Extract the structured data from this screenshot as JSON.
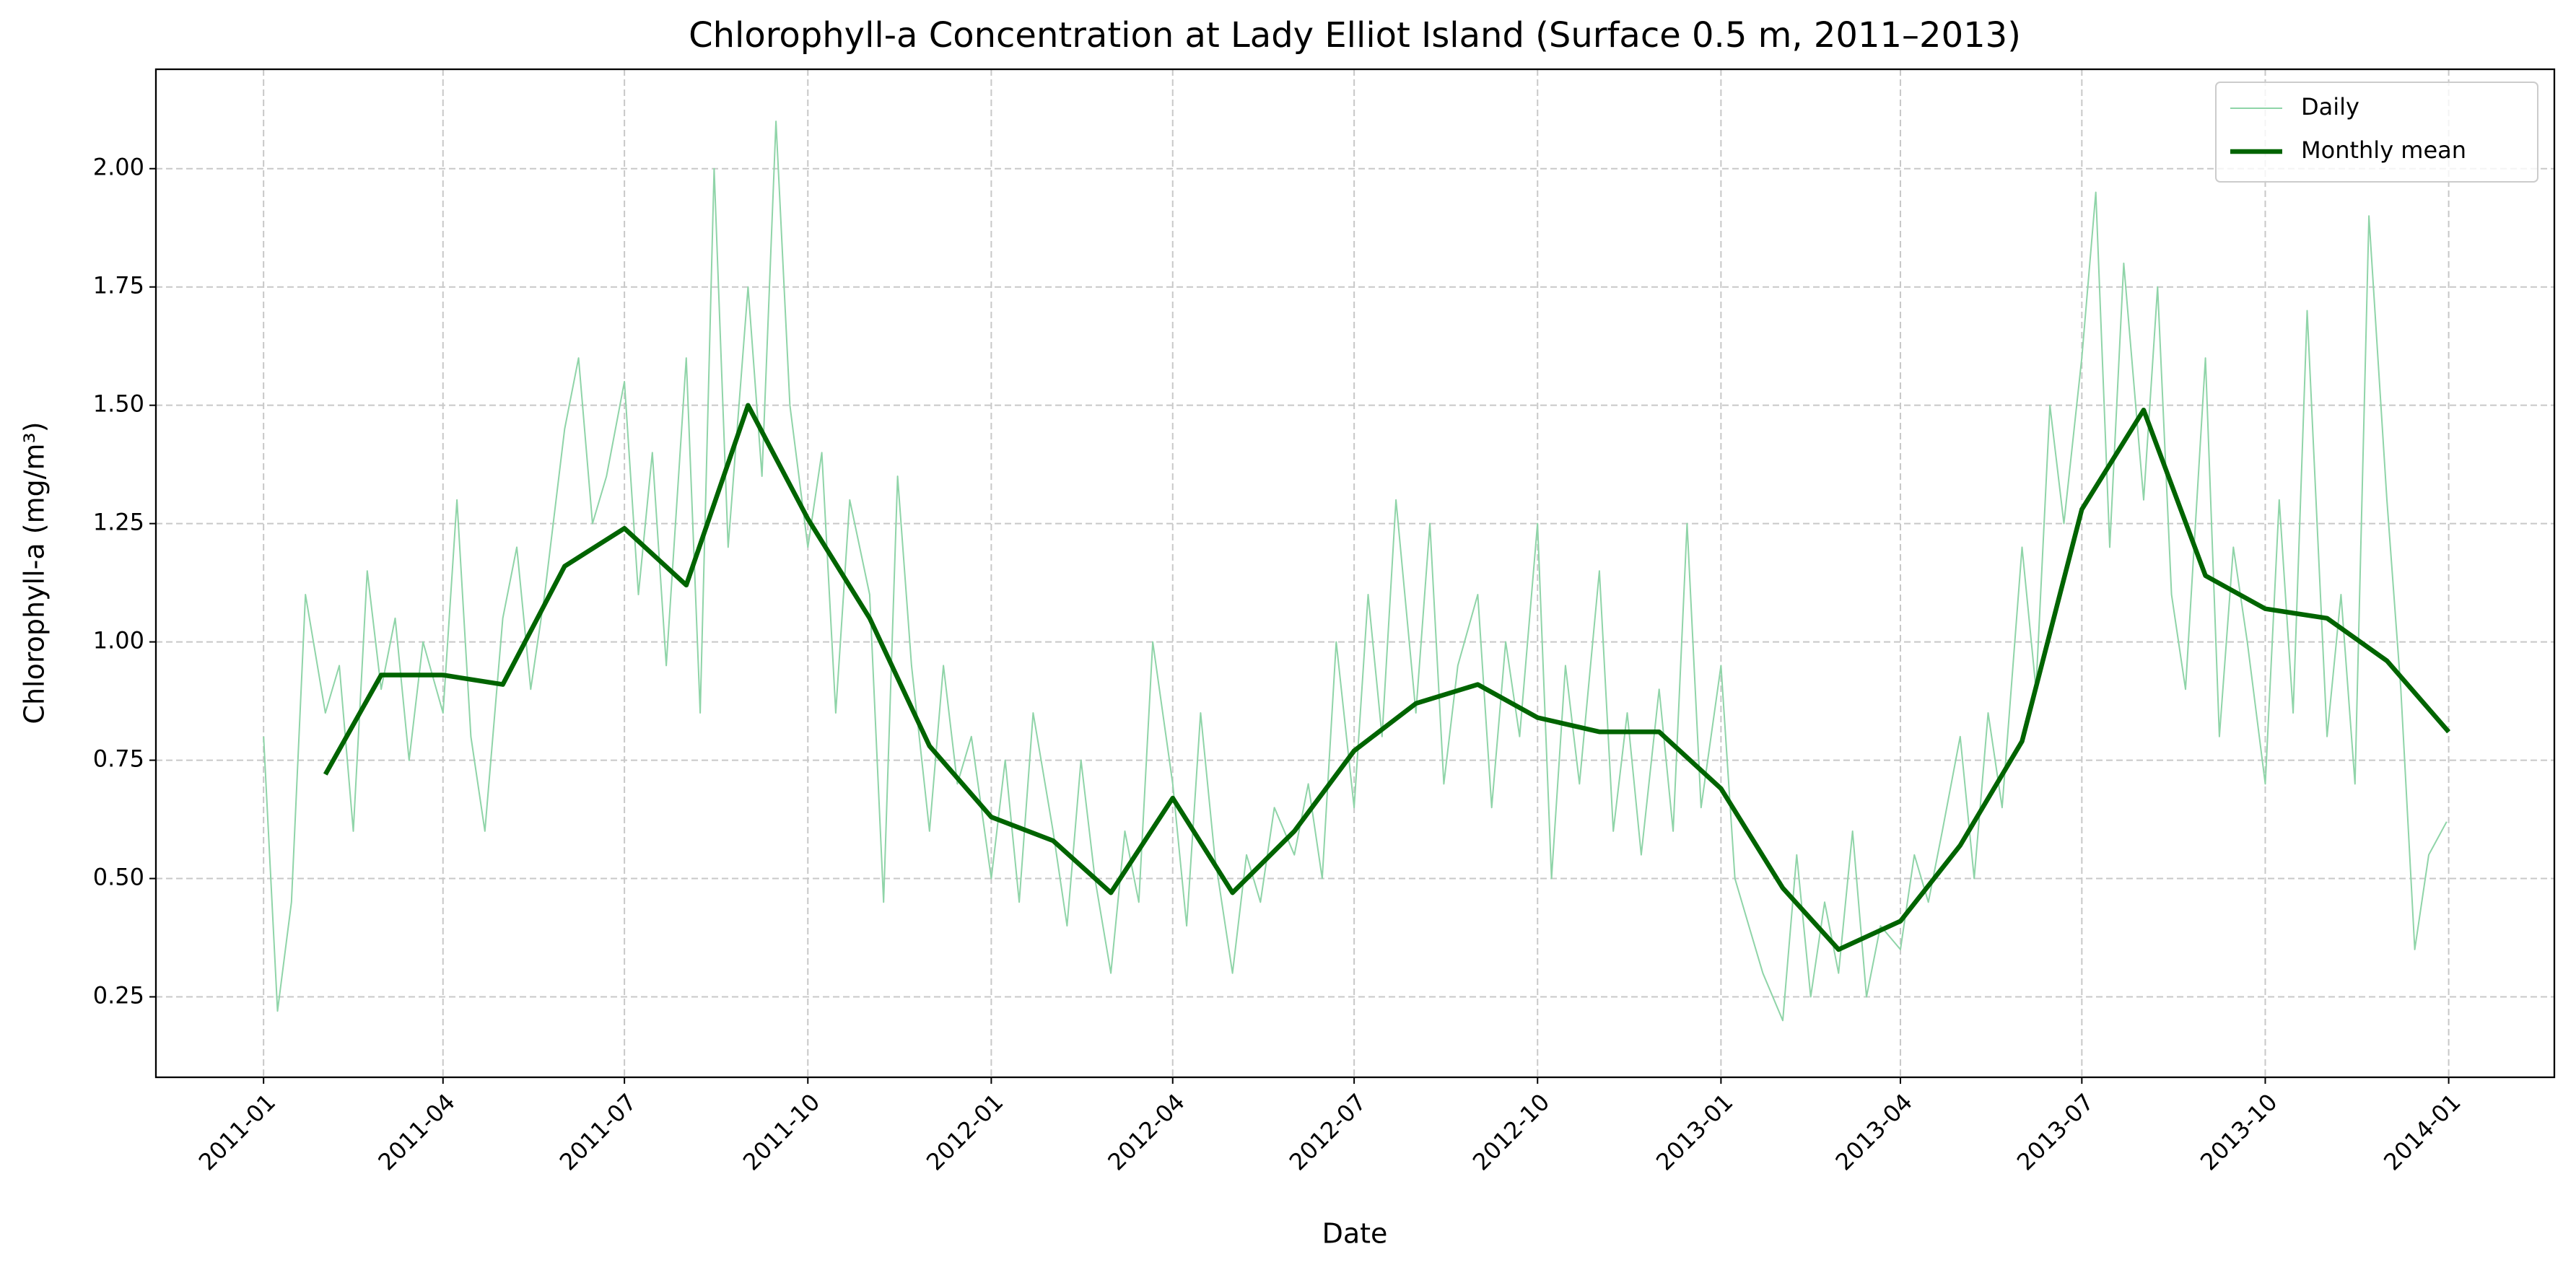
{
  "chart_data": {
    "type": "line",
    "title": "Chlorophyll-a Concentration at Lady Elliot Island (Surface 0.5 m, 2011–2013)",
    "x_label": "Date",
    "y_label": "Chlorophyll-a (mg/m³)",
    "xlim": [
      "2010-11-08",
      "2014-02-23"
    ],
    "ylim": [
      0.08,
      2.21
    ],
    "xticks": [
      {
        "value": "2011-01-01",
        "label": "2011-01"
      },
      {
        "value": "2011-04-01",
        "label": "2011-04"
      },
      {
        "value": "2011-07-01",
        "label": "2011-07"
      },
      {
        "value": "2011-10-01",
        "label": "2011-10"
      },
      {
        "value": "2012-01-01",
        "label": "2012-01"
      },
      {
        "value": "2012-04-01",
        "label": "2012-04"
      },
      {
        "value": "2012-07-01",
        "label": "2012-07"
      },
      {
        "value": "2012-10-01",
        "label": "2012-10"
      },
      {
        "value": "2013-01-01",
        "label": "2013-01"
      },
      {
        "value": "2013-04-01",
        "label": "2013-04"
      },
      {
        "value": "2013-07-01",
        "label": "2013-07"
      },
      {
        "value": "2013-10-01",
        "label": "2013-10"
      },
      {
        "value": "2014-01-01",
        "label": "2014-01"
      }
    ],
    "yticks": [
      {
        "value": 0.25,
        "label": "0.25"
      },
      {
        "value": 0.5,
        "label": "0.50"
      },
      {
        "value": 0.75,
        "label": "0.75"
      },
      {
        "value": 1,
        "label": "1.00"
      },
      {
        "value": 1.25,
        "label": "1.25"
      },
      {
        "value": 1.5,
        "label": "1.50"
      },
      {
        "value": 1.75,
        "label": "1.75"
      },
      {
        "value": 2,
        "label": "2.00"
      }
    ],
    "grid": true,
    "legend": "upper right",
    "series": [
      {
        "name": "Daily",
        "color": "#8fd4a8",
        "width": 2,
        "x": [
          "2011-01-01",
          "2011-01-08",
          "2011-01-15",
          "2011-01-22",
          "2011-02-01",
          "2011-02-08",
          "2011-02-15",
          "2011-02-22",
          "2011-03-01",
          "2011-03-08",
          "2011-03-15",
          "2011-03-22",
          "2011-04-01",
          "2011-04-08",
          "2011-04-15",
          "2011-04-22",
          "2011-05-01",
          "2011-05-08",
          "2011-05-15",
          "2011-05-22",
          "2011-06-01",
          "2011-06-08",
          "2011-06-15",
          "2011-06-22",
          "2011-07-01",
          "2011-07-08",
          "2011-07-15",
          "2011-07-22",
          "2011-08-01",
          "2011-08-08",
          "2011-08-15",
          "2011-08-22",
          "2011-09-01",
          "2011-09-08",
          "2011-09-15",
          "2011-09-22",
          "2011-10-01",
          "2011-10-08",
          "2011-10-15",
          "2011-10-22",
          "2011-11-01",
          "2011-11-08",
          "2011-11-15",
          "2011-11-22",
          "2011-12-01",
          "2011-12-08",
          "2011-12-15",
          "2011-12-22",
          "2012-01-01",
          "2012-01-08",
          "2012-01-15",
          "2012-01-22",
          "2012-02-01",
          "2012-02-08",
          "2012-02-15",
          "2012-02-22",
          "2012-03-01",
          "2012-03-08",
          "2012-03-15",
          "2012-03-22",
          "2012-04-01",
          "2012-04-08",
          "2012-04-15",
          "2012-04-22",
          "2012-05-01",
          "2012-05-08",
          "2012-05-15",
          "2012-05-22",
          "2012-06-01",
          "2012-06-08",
          "2012-06-15",
          "2012-06-22",
          "2012-07-01",
          "2012-07-08",
          "2012-07-15",
          "2012-07-22",
          "2012-08-01",
          "2012-08-08",
          "2012-08-15",
          "2012-08-22",
          "2012-09-01",
          "2012-09-08",
          "2012-09-15",
          "2012-09-22",
          "2012-10-01",
          "2012-10-08",
          "2012-10-15",
          "2012-10-22",
          "2012-11-01",
          "2012-11-08",
          "2012-11-15",
          "2012-11-22",
          "2012-12-01",
          "2012-12-08",
          "2012-12-15",
          "2012-12-22",
          "2013-01-01",
          "2013-01-08",
          "2013-01-15",
          "2013-01-22",
          "2013-02-01",
          "2013-02-08",
          "2013-02-15",
          "2013-02-22",
          "2013-03-01",
          "2013-03-08",
          "2013-03-15",
          "2013-03-22",
          "2013-04-01",
          "2013-04-08",
          "2013-04-15",
          "2013-04-22",
          "2013-05-01",
          "2013-05-08",
          "2013-05-15",
          "2013-05-22",
          "2013-06-01",
          "2013-06-08",
          "2013-06-15",
          "2013-06-22",
          "2013-07-01",
          "2013-07-08",
          "2013-07-15",
          "2013-07-22",
          "2013-08-01",
          "2013-08-08",
          "2013-08-15",
          "2013-08-22",
          "2013-09-01",
          "2013-09-08",
          "2013-09-15",
          "2013-09-22",
          "2013-10-01",
          "2013-10-08",
          "2013-10-15",
          "2013-10-22",
          "2013-11-01",
          "2013-11-08",
          "2013-11-15",
          "2013-11-22",
          "2013-12-01",
          "2013-12-08",
          "2013-12-15",
          "2013-12-22",
          "2013-12-31"
        ],
        "values": [
          0.8,
          0.22,
          0.45,
          1.1,
          0.85,
          0.95,
          0.6,
          1.15,
          0.9,
          1.05,
          0.75,
          1.0,
          0.85,
          1.3,
          0.8,
          0.6,
          1.05,
          1.2,
          0.9,
          1.1,
          1.45,
          1.6,
          1.25,
          1.35,
          1.55,
          1.1,
          1.4,
          0.95,
          1.6,
          0.85,
          2.0,
          1.2,
          1.75,
          1.35,
          2.1,
          1.5,
          1.2,
          1.4,
          0.85,
          1.3,
          1.1,
          0.45,
          1.35,
          0.95,
          0.6,
          0.95,
          0.7,
          0.8,
          0.5,
          0.75,
          0.45,
          0.85,
          0.6,
          0.4,
          0.75,
          0.5,
          0.3,
          0.6,
          0.45,
          1.0,
          0.7,
          0.4,
          0.85,
          0.55,
          0.3,
          0.55,
          0.45,
          0.65,
          0.55,
          0.7,
          0.5,
          1.0,
          0.65,
          1.1,
          0.8,
          1.3,
          0.85,
          1.25,
          0.7,
          0.95,
          1.1,
          0.65,
          1.0,
          0.8,
          1.25,
          0.5,
          0.95,
          0.7,
          1.15,
          0.6,
          0.85,
          0.55,
          0.9,
          0.6,
          1.25,
          0.65,
          0.95,
          0.5,
          0.4,
          0.3,
          0.2,
          0.55,
          0.25,
          0.45,
          0.3,
          0.6,
          0.25,
          0.4,
          0.35,
          0.55,
          0.45,
          0.6,
          0.8,
          0.5,
          0.85,
          0.65,
          1.2,
          0.9,
          1.5,
          1.25,
          1.6,
          1.95,
          1.2,
          1.8,
          1.3,
          1.75,
          1.1,
          0.9,
          1.6,
          0.8,
          1.2,
          1.0,
          0.7,
          1.3,
          0.85,
          1.7,
          0.8,
          1.1,
          0.7,
          1.9,
          1.3,
          0.9,
          0.35,
          0.55,
          0.62
        ]
      },
      {
        "name": "Monthly mean",
        "color": "#006400",
        "width": 6.5,
        "x": [
          "2011-02",
          "2011-03",
          "2011-04",
          "2011-05",
          "2011-06",
          "2011-07",
          "2011-08",
          "2011-09",
          "2011-10",
          "2011-11",
          "2011-12",
          "2012-01",
          "2012-02",
          "2012-03",
          "2012-04",
          "2012-05",
          "2012-06",
          "2012-07",
          "2012-08",
          "2012-09",
          "2012-10",
          "2012-11",
          "2012-12",
          "2013-01",
          "2013-02",
          "2013-03",
          "2013-04",
          "2013-05",
          "2013-06",
          "2013-07",
          "2013-08",
          "2013-09",
          "2013-10",
          "2013-11",
          "2013-12",
          "2014-01"
        ],
        "values": [
          0.72,
          0.93,
          0.93,
          0.91,
          1.16,
          1.24,
          1.12,
          1.5,
          1.26,
          1.05,
          0.78,
          0.63,
          0.58,
          0.47,
          0.67,
          0.47,
          0.6,
          0.77,
          0.87,
          0.91,
          0.84,
          0.81,
          0.81,
          0.69,
          0.48,
          0.35,
          0.41,
          0.57,
          0.79,
          1.28,
          1.49,
          1.14,
          1.07,
          1.05,
          0.96,
          0.81
        ]
      }
    ]
  }
}
